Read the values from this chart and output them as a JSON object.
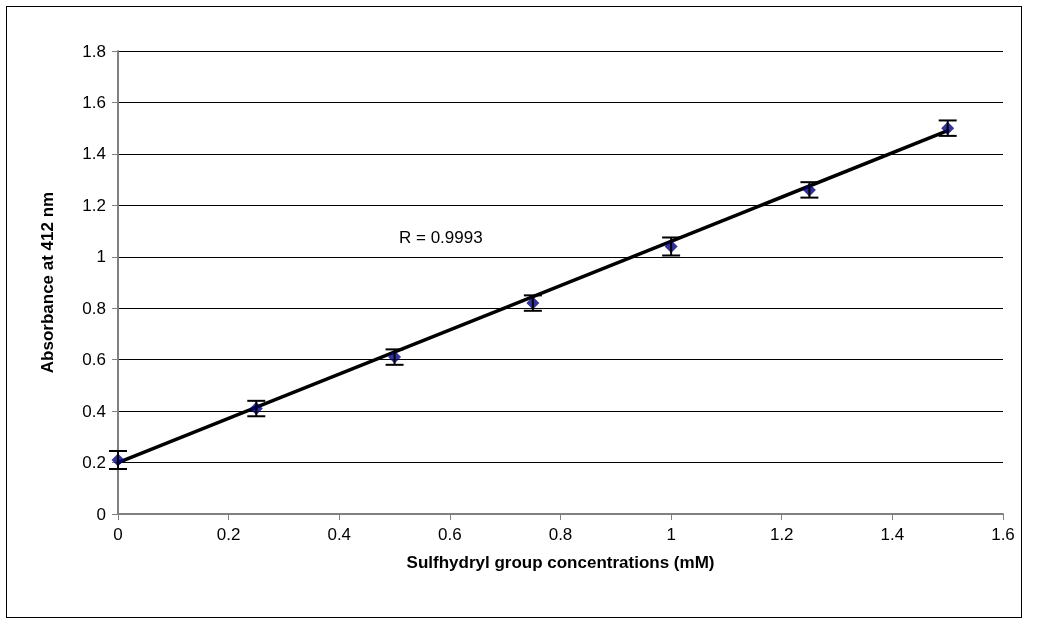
{
  "chart_data": {
    "type": "scatter",
    "xlabel": "Sulfhydryl group concentrations (mM)",
    "ylabel": "Absorbance at 412 nm",
    "annotations": [
      "R = 0.9993"
    ],
    "xlim": [
      0,
      1.6
    ],
    "xticks": [
      0,
      0.2,
      0.4,
      0.6,
      0.8,
      1,
      1.2,
      1.4,
      1.6
    ],
    "ylim": [
      0,
      1.8
    ],
    "yticks": [
      0,
      0.2,
      0.4,
      0.6,
      0.8,
      1,
      1.2,
      1.4,
      1.6,
      1.8
    ],
    "grid": "y",
    "marker": "diamond",
    "series": [
      {
        "color": "#000080",
        "x": [
          0,
          0.25,
          0.5,
          0.75,
          1,
          1.25,
          1.5
        ],
        "values": [
          0.21,
          0.41,
          0.61,
          0.82,
          1.04,
          1.26,
          1.5
        ],
        "errors": [
          0.035,
          0.03,
          0.03,
          0.03,
          0.035,
          0.03,
          0.03
        ]
      },
      {
        "type": "line",
        "color": "#000000",
        "marker": "none",
        "line_style": "solid",
        "x": [
          0,
          1.5
        ],
        "values": [
          0.2,
          1.49
        ]
      }
    ]
  }
}
